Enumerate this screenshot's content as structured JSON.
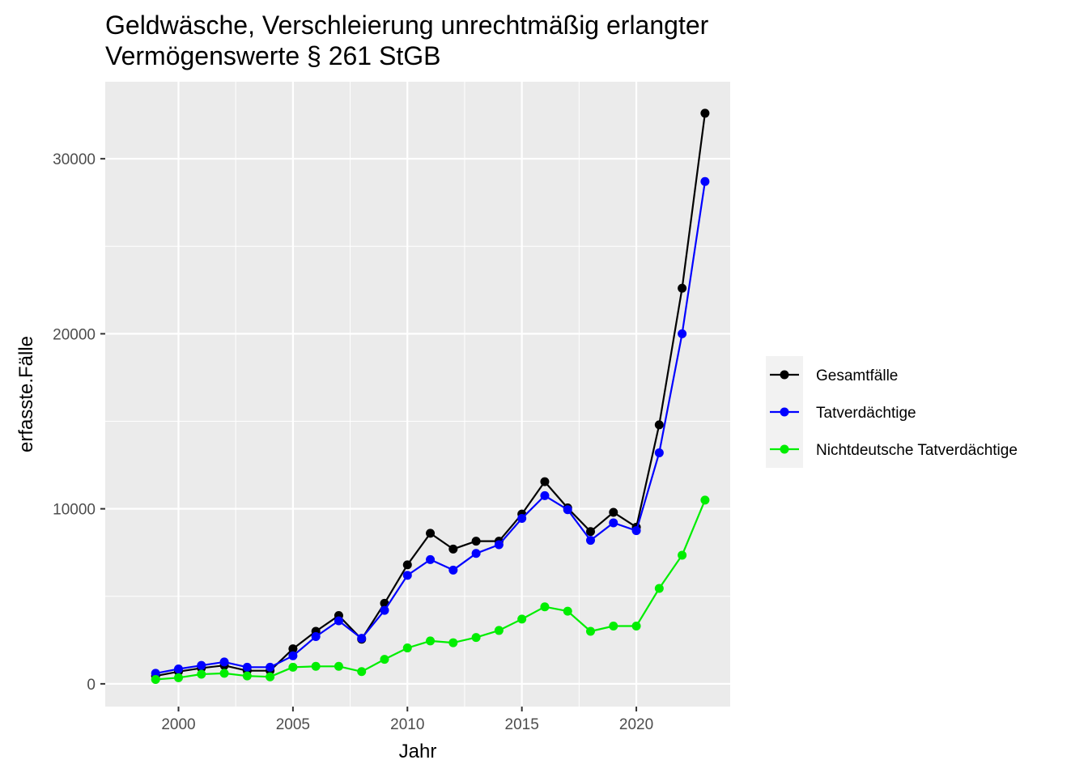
{
  "chart_data": {
    "type": "line",
    "title": [
      "Geldwäsche, Verschleierung unrechtmäßig erlangter",
      "Vermögenswerte § 261 StGB"
    ],
    "xlabel": "Jahr",
    "ylabel": "erfasste.Fälle",
    "xlim": [
      1996.8,
      2024.1
    ],
    "ylim": [
      -1300,
      34400
    ],
    "x_ticks": [
      2000,
      2005,
      2010,
      2015,
      2020
    ],
    "y_ticks": [
      0,
      10000,
      20000,
      30000
    ],
    "x": [
      1999,
      2000,
      2001,
      2002,
      2003,
      2004,
      2005,
      2006,
      2007,
      2008,
      2009,
      2010,
      2011,
      2012,
      2013,
      2014,
      2015,
      2016,
      2017,
      2018,
      2019,
      2020,
      2021,
      2022,
      2023
    ],
    "series": [
      {
        "name": "Gesamtfälle",
        "color": "#000000",
        "values": [
          450,
          700,
          900,
          1050,
          750,
          750,
          2000,
          3000,
          3900,
          2550,
          4600,
          6800,
          8600,
          7700,
          8150,
          8150,
          9700,
          11550,
          10050,
          8700,
          9800,
          8950,
          14800,
          22600,
          32600
        ]
      },
      {
        "name": "Tatverdächtige",
        "color": "#0000ff",
        "values": [
          600,
          850,
          1050,
          1250,
          950,
          950,
          1600,
          2700,
          3600,
          2600,
          4200,
          6200,
          7100,
          6500,
          7450,
          7950,
          9450,
          10750,
          9950,
          8200,
          9200,
          8750,
          13200,
          20000,
          28700
        ]
      },
      {
        "name": "Nichtdeutsche Tatverdächtige",
        "color": "#00ee00",
        "values": [
          250,
          350,
          550,
          600,
          450,
          400,
          950,
          1000,
          1000,
          700,
          1400,
          2050,
          2450,
          2350,
          2650,
          3050,
          3700,
          4400,
          4150,
          3000,
          3300,
          3300,
          5450,
          7350,
          10500
        ]
      }
    ],
    "grid": true,
    "legend_position": "right"
  }
}
